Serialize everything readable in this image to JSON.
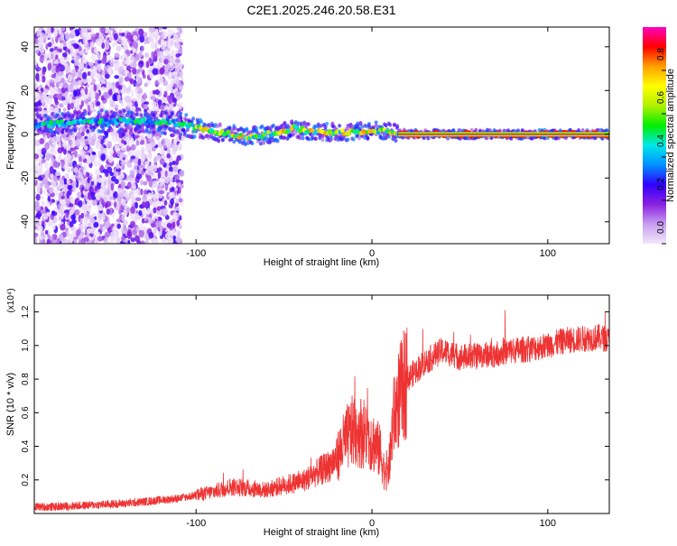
{
  "title": "C2E1.2025.246.20.58.E31",
  "chart_data": [
    {
      "type": "heatmap",
      "title": "C2E1.2025.246.20.58.E31",
      "xlabel": "Height of straight line (km)",
      "ylabel": "Frequency (Hz)",
      "xlim": [
        -192,
        135
      ],
      "ylim": [
        -50,
        49
      ],
      "xticks": [
        -100,
        0,
        100
      ],
      "xtick_labels": [
        "-100",
        "0",
        "100"
      ],
      "yticks": [
        -40,
        -20,
        0,
        20,
        40
      ],
      "ytick_labels": [
        "-40",
        "-20",
        "0",
        "20",
        "40"
      ],
      "colorbar": {
        "label": "Normalized spectral amplitude",
        "range": [
          0,
          1
        ],
        "ticks": [
          0.0,
          0.2,
          0.4,
          0.6,
          0.8
        ],
        "tick_labels": [
          "0.0",
          "0.2",
          "0.4",
          "0.6",
          "0.8"
        ],
        "colors": [
          "#f2e6fa",
          "#c79ef0",
          "#8a20e0",
          "#3000ff",
          "#0090ff",
          "#00e8e8",
          "#00ee00",
          "#b0f000",
          "#ffff00",
          "#ffa000",
          "#ff0000",
          "#ff00c0"
        ]
      },
      "ridge": {
        "description_points_x": [
          -192,
          -160,
          -130,
          -110,
          -100,
          -90,
          -80,
          -70,
          -60,
          -50,
          -45,
          -40,
          -30,
          -20,
          -10,
          0,
          10,
          20,
          40,
          135
        ],
        "frequency_hz": [
          4,
          6,
          6,
          5,
          3,
          1,
          0,
          -1,
          0,
          1,
          3,
          2,
          1,
          1,
          1,
          2,
          1,
          0,
          0,
          0
        ]
      },
      "steady_line_hz": 0,
      "steady_line_from_km": 15,
      "noise_region_km": [
        -192,
        -108
      ]
    },
    {
      "type": "line",
      "title": "",
      "xlabel": "Height of straight line (km)",
      "ylabel": "SNR (10 * v/v)",
      "scale_label": "(x10⁴)",
      "xlim": [
        -192,
        135
      ],
      "ylim": [
        0,
        1.3
      ],
      "xticks": [
        -100,
        0,
        100
      ],
      "xtick_labels": [
        "-100",
        "0",
        "100"
      ],
      "yticks": [
        0.2,
        0.4,
        0.6,
        0.8,
        1.0,
        1.2
      ],
      "ytick_labels": [
        "0.2",
        "0.4",
        "0.6",
        "0.8",
        "1.0",
        "1.2"
      ],
      "series": [
        {
          "name": "SNR",
          "color": "#ee3333",
          "x": [
            -192,
            -180,
            -160,
            -140,
            -120,
            -110,
            -100,
            -90,
            -80,
            -70,
            -60,
            -50,
            -40,
            -35,
            -30,
            -25,
            -20,
            -15,
            -10,
            -5,
            0,
            5,
            8,
            10,
            12,
            15,
            20,
            30,
            40,
            50,
            60,
            70,
            80,
            90,
            100,
            110,
            120,
            130,
            135
          ],
          "y": [
            0.04,
            0.04,
            0.05,
            0.06,
            0.08,
            0.09,
            0.11,
            0.13,
            0.16,
            0.15,
            0.14,
            0.17,
            0.19,
            0.22,
            0.25,
            0.28,
            0.33,
            0.44,
            0.5,
            0.48,
            0.44,
            0.36,
            0.2,
            0.3,
            0.55,
            0.68,
            0.8,
            0.9,
            0.97,
            0.93,
            0.94,
            0.95,
            0.97,
            0.98,
            1.0,
            1.03,
            1.04,
            1.05,
            1.03
          ]
        }
      ]
    }
  ]
}
